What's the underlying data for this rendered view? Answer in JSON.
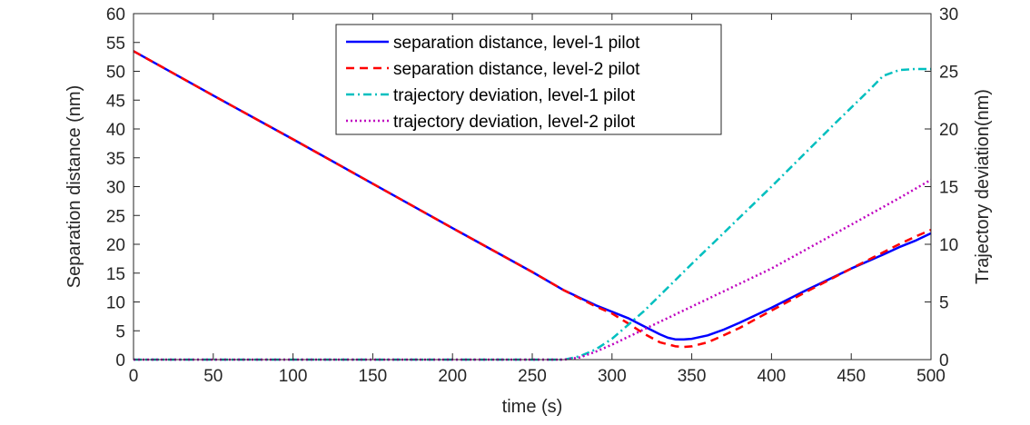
{
  "chart_data": {
    "type": "line",
    "xlabel": "time (s)",
    "ylabel_left": "Separation distance (nm)",
    "ylabel_right": "Trajectory deviation(nm)",
    "xlim": [
      0,
      500
    ],
    "ylim_left": [
      0,
      60
    ],
    "ylim_right": [
      0,
      30
    ],
    "xticks": [
      0,
      50,
      100,
      150,
      200,
      250,
      300,
      350,
      400,
      450,
      500
    ],
    "yticks_left": [
      0,
      5,
      10,
      15,
      20,
      25,
      30,
      35,
      40,
      45,
      50,
      55,
      60
    ],
    "yticks_right": [
      0,
      5,
      10,
      15,
      20,
      25,
      30
    ],
    "grid": false,
    "legend_position": "top-center",
    "series": [
      {
        "name": "separation distance, level-1 pilot",
        "axis": "left",
        "color": "#0000ff",
        "style": "solid",
        "x": [
          0,
          50,
          100,
          150,
          200,
          250,
          270,
          290,
          300,
          310,
          320,
          330,
          335,
          340,
          345,
          350,
          360,
          370,
          380,
          400,
          420,
          450,
          470,
          480,
          490,
          500
        ],
        "y": [
          53.5,
          45.8,
          38.2,
          30.5,
          22.8,
          15.2,
          12.0,
          9.4,
          8.3,
          7.2,
          5.8,
          4.4,
          3.8,
          3.5,
          3.5,
          3.6,
          4.2,
          5.2,
          6.4,
          9.0,
          11.8,
          15.8,
          18.2,
          19.5,
          20.6,
          21.9
        ]
      },
      {
        "name": "separation distance, level-2 pilot",
        "axis": "left",
        "color": "#ff0000",
        "style": "dashed",
        "x": [
          0,
          50,
          100,
          150,
          200,
          250,
          270,
          290,
          300,
          310,
          320,
          330,
          340,
          345,
          350,
          360,
          370,
          380,
          400,
          420,
          450,
          470,
          480,
          490,
          500
        ],
        "y": [
          53.5,
          45.8,
          38.2,
          30.5,
          22.8,
          15.2,
          12.0,
          9.2,
          8.0,
          6.3,
          4.5,
          3.0,
          2.3,
          2.2,
          2.3,
          3.0,
          4.2,
          5.5,
          8.5,
          11.5,
          15.8,
          18.6,
          20.0,
          21.3,
          22.5
        ]
      },
      {
        "name": "trajectory deviation, level-1 pilot",
        "axis": "right",
        "color": "#00bfbf",
        "style": "dashdot",
        "x": [
          0,
          270,
          280,
          290,
          300,
          320,
          350,
          400,
          440,
          460,
          470,
          480,
          490,
          500
        ],
        "y": [
          0,
          0,
          0.3,
          0.9,
          1.8,
          4.2,
          8.3,
          15.0,
          20.5,
          23.2,
          24.6,
          25.1,
          25.2,
          25.2
        ]
      },
      {
        "name": "trajectory deviation, level-2 pilot",
        "axis": "right",
        "color": "#bf00bf",
        "style": "dotted",
        "x": [
          0,
          270,
          280,
          290,
          300,
          350,
          400,
          450,
          480,
          500
        ],
        "y": [
          0,
          0,
          0.2,
          0.7,
          1.3,
          4.6,
          7.9,
          11.7,
          14.0,
          15.6
        ]
      }
    ]
  }
}
